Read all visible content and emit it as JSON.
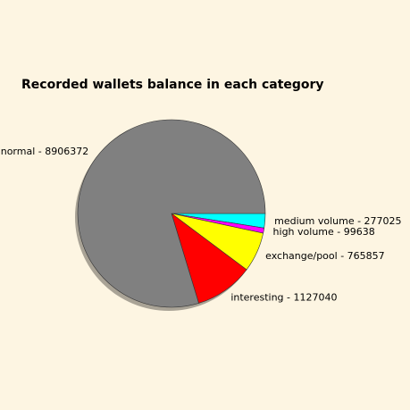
{
  "chart_data": {
    "type": "pie",
    "title": "Recorded wallets balance in each category",
    "slices": [
      {
        "name": "normal",
        "value": 8906372,
        "label": "normal - 8906372",
        "color": "#808080"
      },
      {
        "name": "interesting",
        "value": 1127040,
        "label": "interesting - 1127040",
        "color": "#ff0000"
      },
      {
        "name": "exchange/pool",
        "value": 765857,
        "label": "exchange/pool - 765857",
        "color": "#ffff00"
      },
      {
        "name": "high volume",
        "value": 99638,
        "label": "high volume - 99638",
        "color": "#ff00ff"
      },
      {
        "name": "medium volume",
        "value": 277025,
        "label": "medium volume - 277025",
        "color": "#00ffff"
      }
    ],
    "legend": "none",
    "shadow": true
  }
}
